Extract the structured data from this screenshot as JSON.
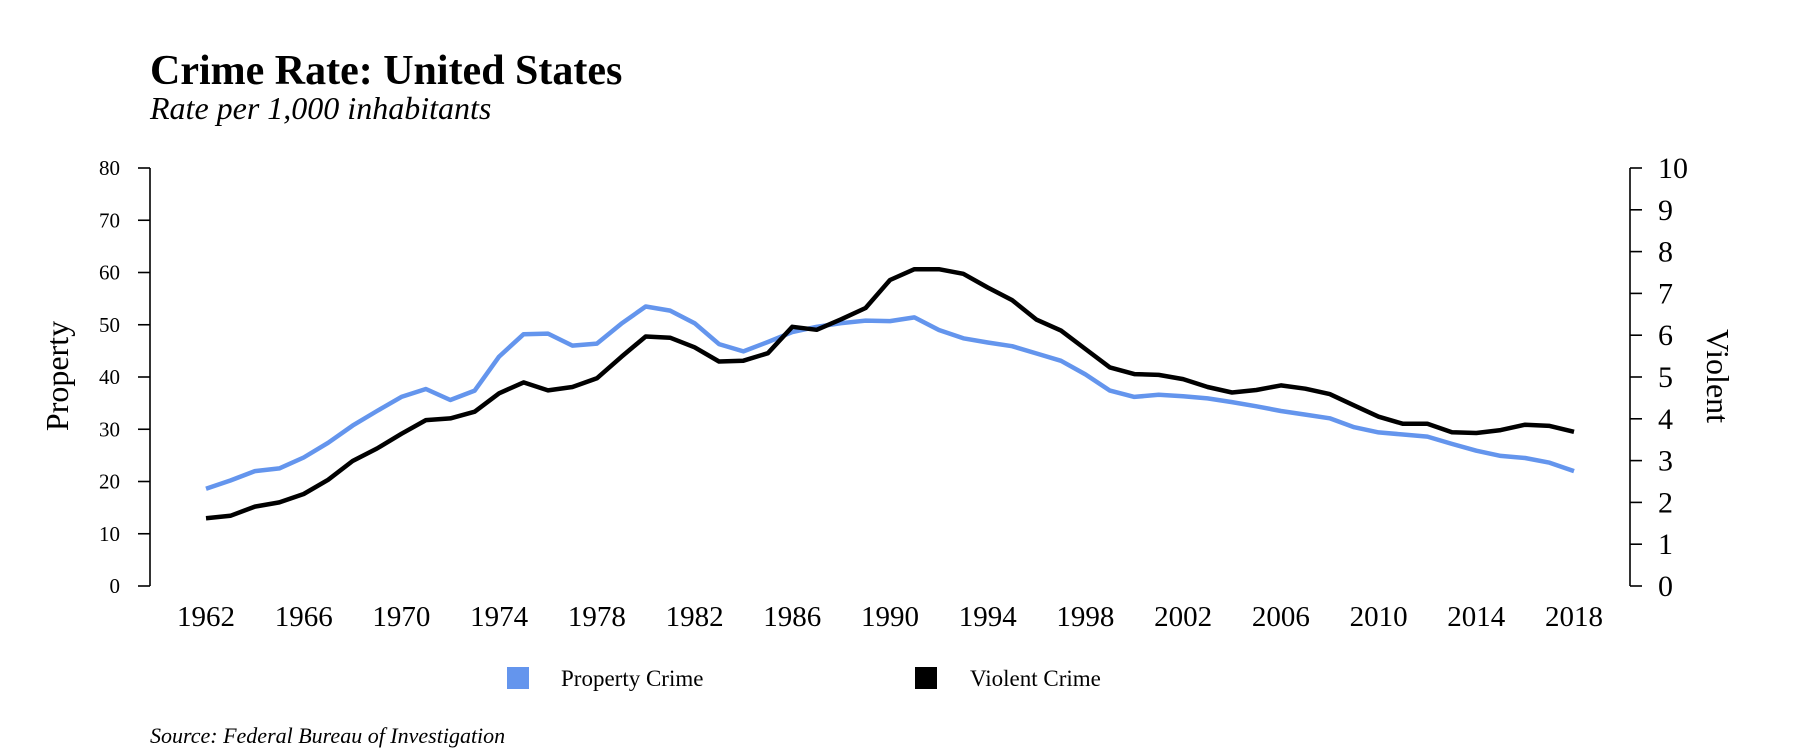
{
  "chart_data": {
    "type": "line",
    "title": "Crime Rate: United States",
    "subtitle": "Rate per 1,000 inhabitants",
    "ylabel_left": "Property",
    "ylabel_right": "Violent",
    "source": "Source: Federal Bureau of Investigation",
    "ylim_left": [
      0,
      80
    ],
    "ylim_right": [
      0,
      10
    ],
    "yticks_left": [
      "0",
      "10",
      "20",
      "30",
      "40",
      "50",
      "60",
      "70",
      "80"
    ],
    "yticks_right": [
      "0",
      "1",
      "2",
      "3",
      "4",
      "5",
      "6",
      "7",
      "8",
      "9",
      "10"
    ],
    "xlim": [
      1962,
      2018
    ],
    "xticks": [
      "1962",
      "1966",
      "1970",
      "1974",
      "1978",
      "1982",
      "1986",
      "1990",
      "1994",
      "1998",
      "2002",
      "2006",
      "2010",
      "2014",
      "2018"
    ],
    "grid": false,
    "legend_position": "bottom",
    "x": [
      1962,
      1963,
      1964,
      1965,
      1966,
      1967,
      1968,
      1969,
      1970,
      1971,
      1972,
      1973,
      1974,
      1975,
      1976,
      1977,
      1978,
      1979,
      1980,
      1981,
      1982,
      1983,
      1984,
      1985,
      1986,
      1987,
      1988,
      1989,
      1990,
      1991,
      1992,
      1993,
      1994,
      1995,
      1996,
      1997,
      1998,
      1999,
      2000,
      2001,
      2002,
      2003,
      2004,
      2005,
      2006,
      2007,
      2008,
      2009,
      2010,
      2011,
      2012,
      2013,
      2014,
      2015,
      2016,
      2017,
      2018
    ],
    "series": [
      {
        "name": "Property Crime",
        "axis": "left",
        "color": "#6495ed",
        "values": [
          18.6,
          20.2,
          22.0,
          22.5,
          24.6,
          27.4,
          30.7,
          33.5,
          36.2,
          37.7,
          35.6,
          37.4,
          43.9,
          48.2,
          48.3,
          46.0,
          46.4,
          50.2,
          53.5,
          52.7,
          50.3,
          46.3,
          44.9,
          46.7,
          48.6,
          49.6,
          50.3,
          50.8,
          50.7,
          51.4,
          49.0,
          47.4,
          46.6,
          45.9,
          44.5,
          43.1,
          40.5,
          37.4,
          36.2,
          36.6,
          36.3,
          35.9,
          35.2,
          34.4,
          33.5,
          32.8,
          32.1,
          30.4,
          29.4,
          29.0,
          28.6,
          27.2,
          25.9,
          24.9,
          24.5,
          23.6,
          22.0
        ]
      },
      {
        "name": "Violent Crime",
        "axis": "right",
        "color": "#000000",
        "values": [
          1.62,
          1.68,
          1.9,
          2.0,
          2.2,
          2.54,
          2.99,
          3.29,
          3.64,
          3.97,
          4.01,
          4.17,
          4.61,
          4.87,
          4.68,
          4.76,
          4.97,
          5.48,
          5.97,
          5.94,
          5.71,
          5.37,
          5.39,
          5.57,
          6.2,
          6.13,
          6.38,
          6.65,
          7.32,
          7.58,
          7.58,
          7.47,
          7.14,
          6.84,
          6.37,
          6.11,
          5.67,
          5.23,
          5.07,
          5.05,
          4.95,
          4.76,
          4.63,
          4.69,
          4.8,
          4.72,
          4.59,
          4.32,
          4.05,
          3.88,
          3.88,
          3.68,
          3.66,
          3.73,
          3.86,
          3.83,
          3.69
        ]
      }
    ]
  }
}
